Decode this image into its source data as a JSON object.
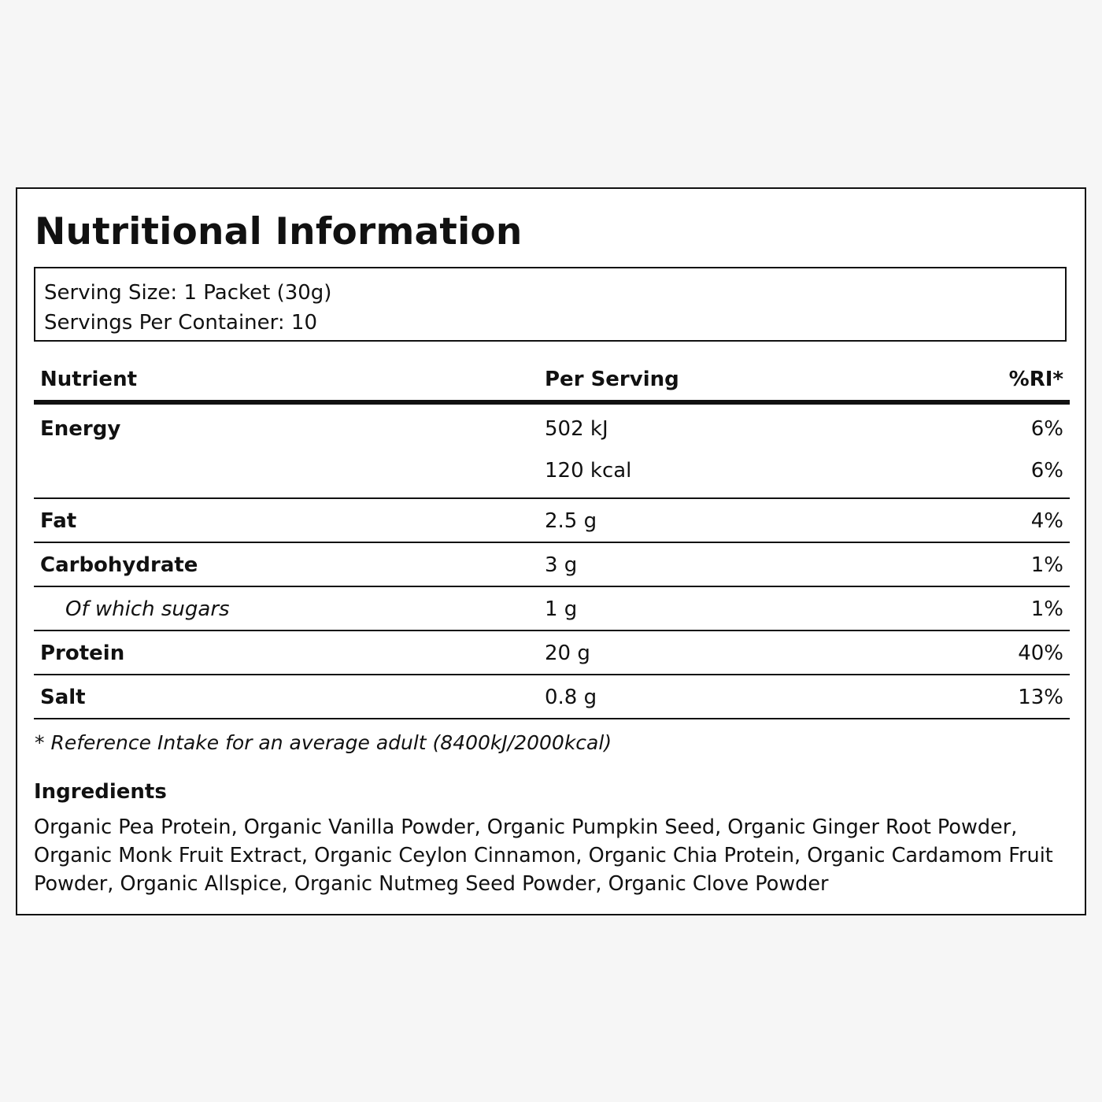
{
  "title": "Nutritional Information",
  "serving": {
    "size": "Serving Size: 1 Packet (30g)",
    "per_container": "Servings Per Container: 10"
  },
  "table": {
    "headers": {
      "nutrient": "Nutrient",
      "per_serving": "Per Serving",
      "ri": "%RI*"
    },
    "energy": {
      "label": "Energy",
      "kj": "502 kJ",
      "kj_ri": "6%",
      "kcal": "120 kcal",
      "kcal_ri": "6%"
    },
    "rows": [
      {
        "label": "Fat",
        "value": "2.5 g",
        "ri": "4%"
      },
      {
        "label": "Carbohydrate",
        "value": "3 g",
        "ri": "1%"
      },
      {
        "label": "Of which sugars",
        "value": "1 g",
        "ri": "1%"
      },
      {
        "label": "Protein",
        "value": "20 g",
        "ri": "40%"
      },
      {
        "label": "Salt",
        "value": "0.8 g",
        "ri": "13%"
      }
    ]
  },
  "footnote": "* Reference Intake for an average adult (8400kJ/2000kcal)",
  "ingredients": {
    "title": "Ingredients",
    "text": "Organic Pea Protein, Organic Vanilla Powder, Organic Pumpkin Seed, Organic Ginger Root Powder, Organic Monk Fruit Extract, Organic Ceylon Cinnamon, Organic Chia Protein, Organic Cardamom Fruit Powder, Organic Allspice, Organic Nutmeg Seed Powder, Organic Clove Powder"
  }
}
